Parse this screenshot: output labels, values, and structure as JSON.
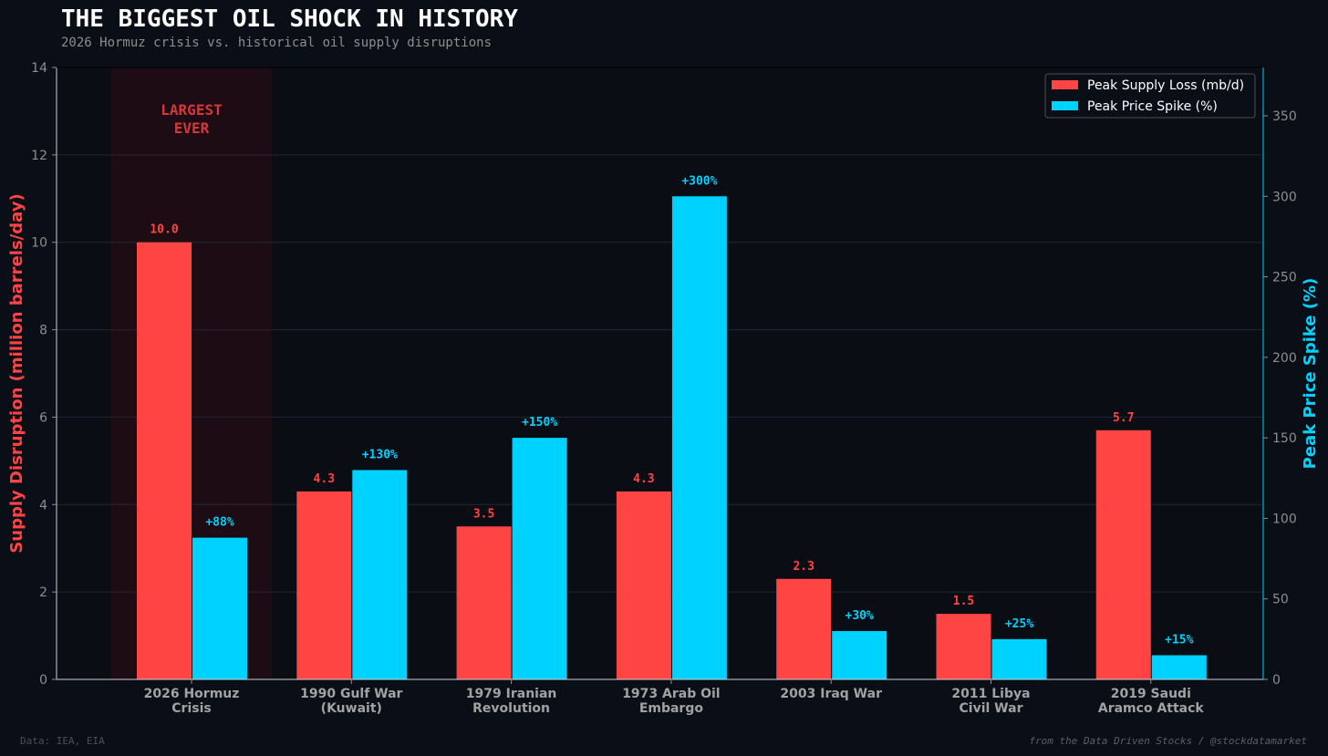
{
  "header": {
    "title": "THE BIGGEST OIL SHOCK IN HISTORY",
    "subtitle": "2026 Hormuz crisis vs. historical oil supply disruptions"
  },
  "footer": {
    "source": "Data: IEA, EIA",
    "credit": "from the Data Driven Stocks / @stockdatamarket"
  },
  "colors": {
    "background": "#0a0e16",
    "supply": "#ff4444",
    "price": "#00d2ff",
    "highlight": "#1e0c14",
    "grid": "#222833",
    "tick_text": "#8e8e8e",
    "category_text": "#a2a2a2"
  },
  "chart_data": {
    "type": "bar",
    "categories": [
      [
        "2026 Hormuz",
        "Crisis"
      ],
      [
        "1990 Gulf War",
        "(Kuwait)"
      ],
      [
        "1979 Iranian",
        "Revolution"
      ],
      [
        "1973 Arab Oil",
        "Embargo"
      ],
      [
        "2003 Iraq War"
      ],
      [
        "2011 Libya",
        "Civil War"
      ],
      [
        "2019 Saudi",
        "Aramco Attack"
      ]
    ],
    "series": [
      {
        "name": "Peak Supply Loss (mb/d)",
        "axis": "left",
        "values": [
          10.0,
          4.3,
          3.5,
          4.3,
          2.3,
          1.5,
          5.7
        ],
        "labels": [
          "10.0",
          "4.3",
          "3.5",
          "4.3",
          "2.3",
          "1.5",
          "5.7"
        ]
      },
      {
        "name": "Peak Price Spike (%)",
        "axis": "right",
        "values": [
          88,
          130,
          150,
          300,
          30,
          25,
          15
        ],
        "labels": [
          "+88%",
          "+130%",
          "+150%",
          "+300%",
          "+30%",
          "+25%",
          "+15%"
        ]
      }
    ],
    "ylabel": "Supply Disruption (million barrels/day)",
    "ylabel_right": "Peak Price Spike (%)",
    "ylim": [
      0,
      14
    ],
    "yticks": [
      0,
      2,
      4,
      6,
      8,
      10,
      12,
      14
    ],
    "ylim_right": [
      0,
      380
    ],
    "yticks_right": [
      0,
      50,
      100,
      150,
      200,
      250,
      300,
      350
    ],
    "highlight_category": 0,
    "annotation": [
      "LARGEST",
      "EVER"
    ],
    "legend_position": "top-right",
    "grid": true
  }
}
